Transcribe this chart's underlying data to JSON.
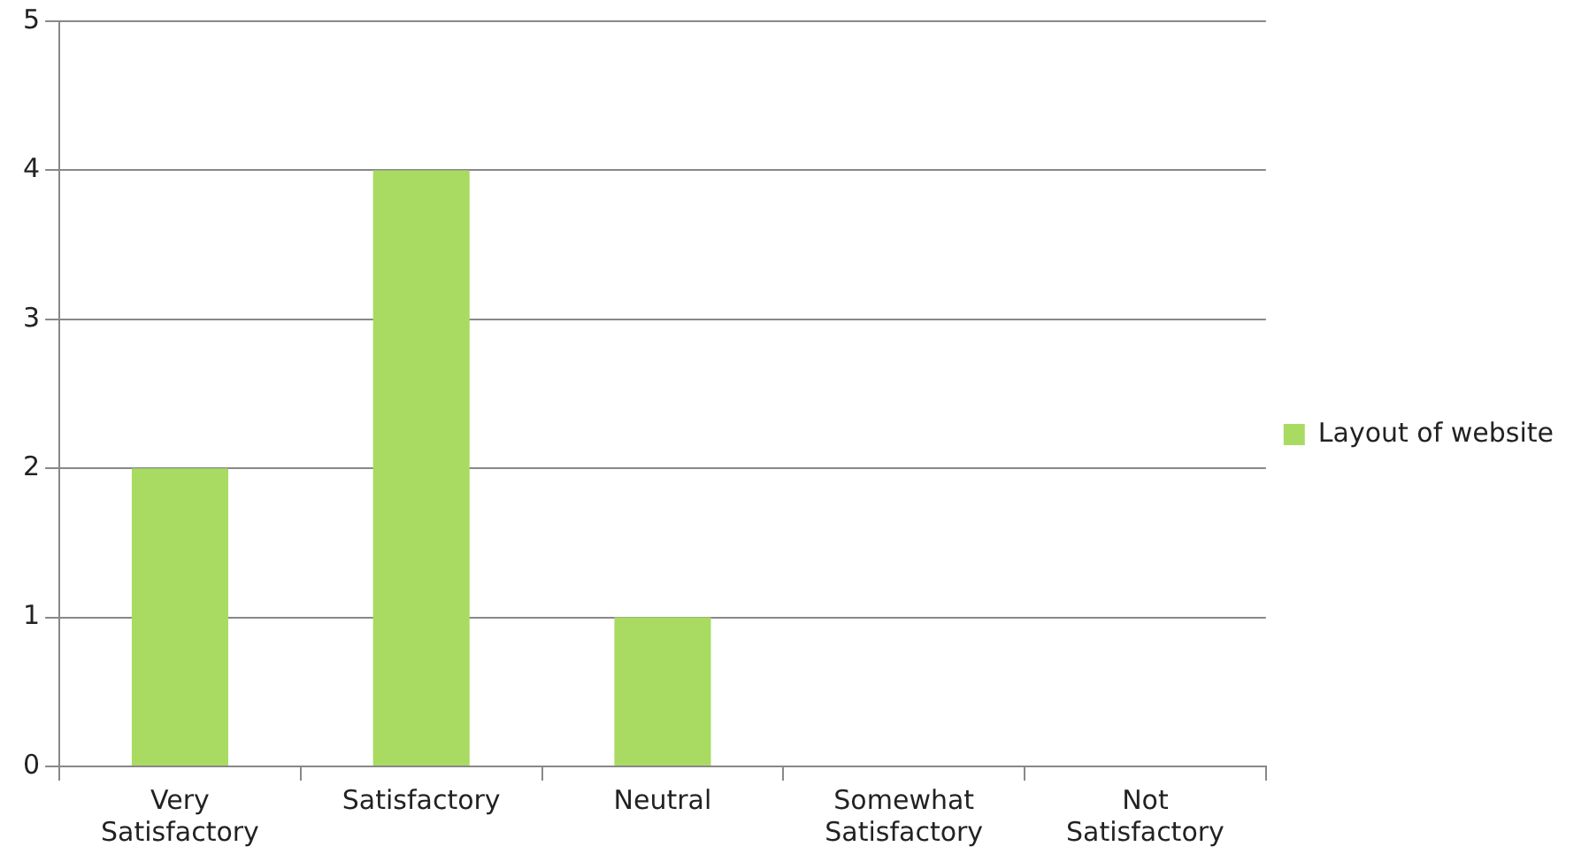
{
  "chart_data": {
    "type": "bar",
    "categories": [
      "Very Satisfactory",
      "Satisfactory",
      "Neutral",
      "Somewhat Satisfactory",
      "Not Satisfactory"
    ],
    "series": [
      {
        "name": "Layout of website",
        "color": "#a9db62",
        "values": [
          2,
          4,
          1,
          0,
          0
        ]
      }
    ],
    "ylim": [
      0,
      5
    ],
    "yticks": [
      0,
      1,
      2,
      3,
      4,
      5
    ],
    "grid": "y",
    "legend": "right"
  }
}
